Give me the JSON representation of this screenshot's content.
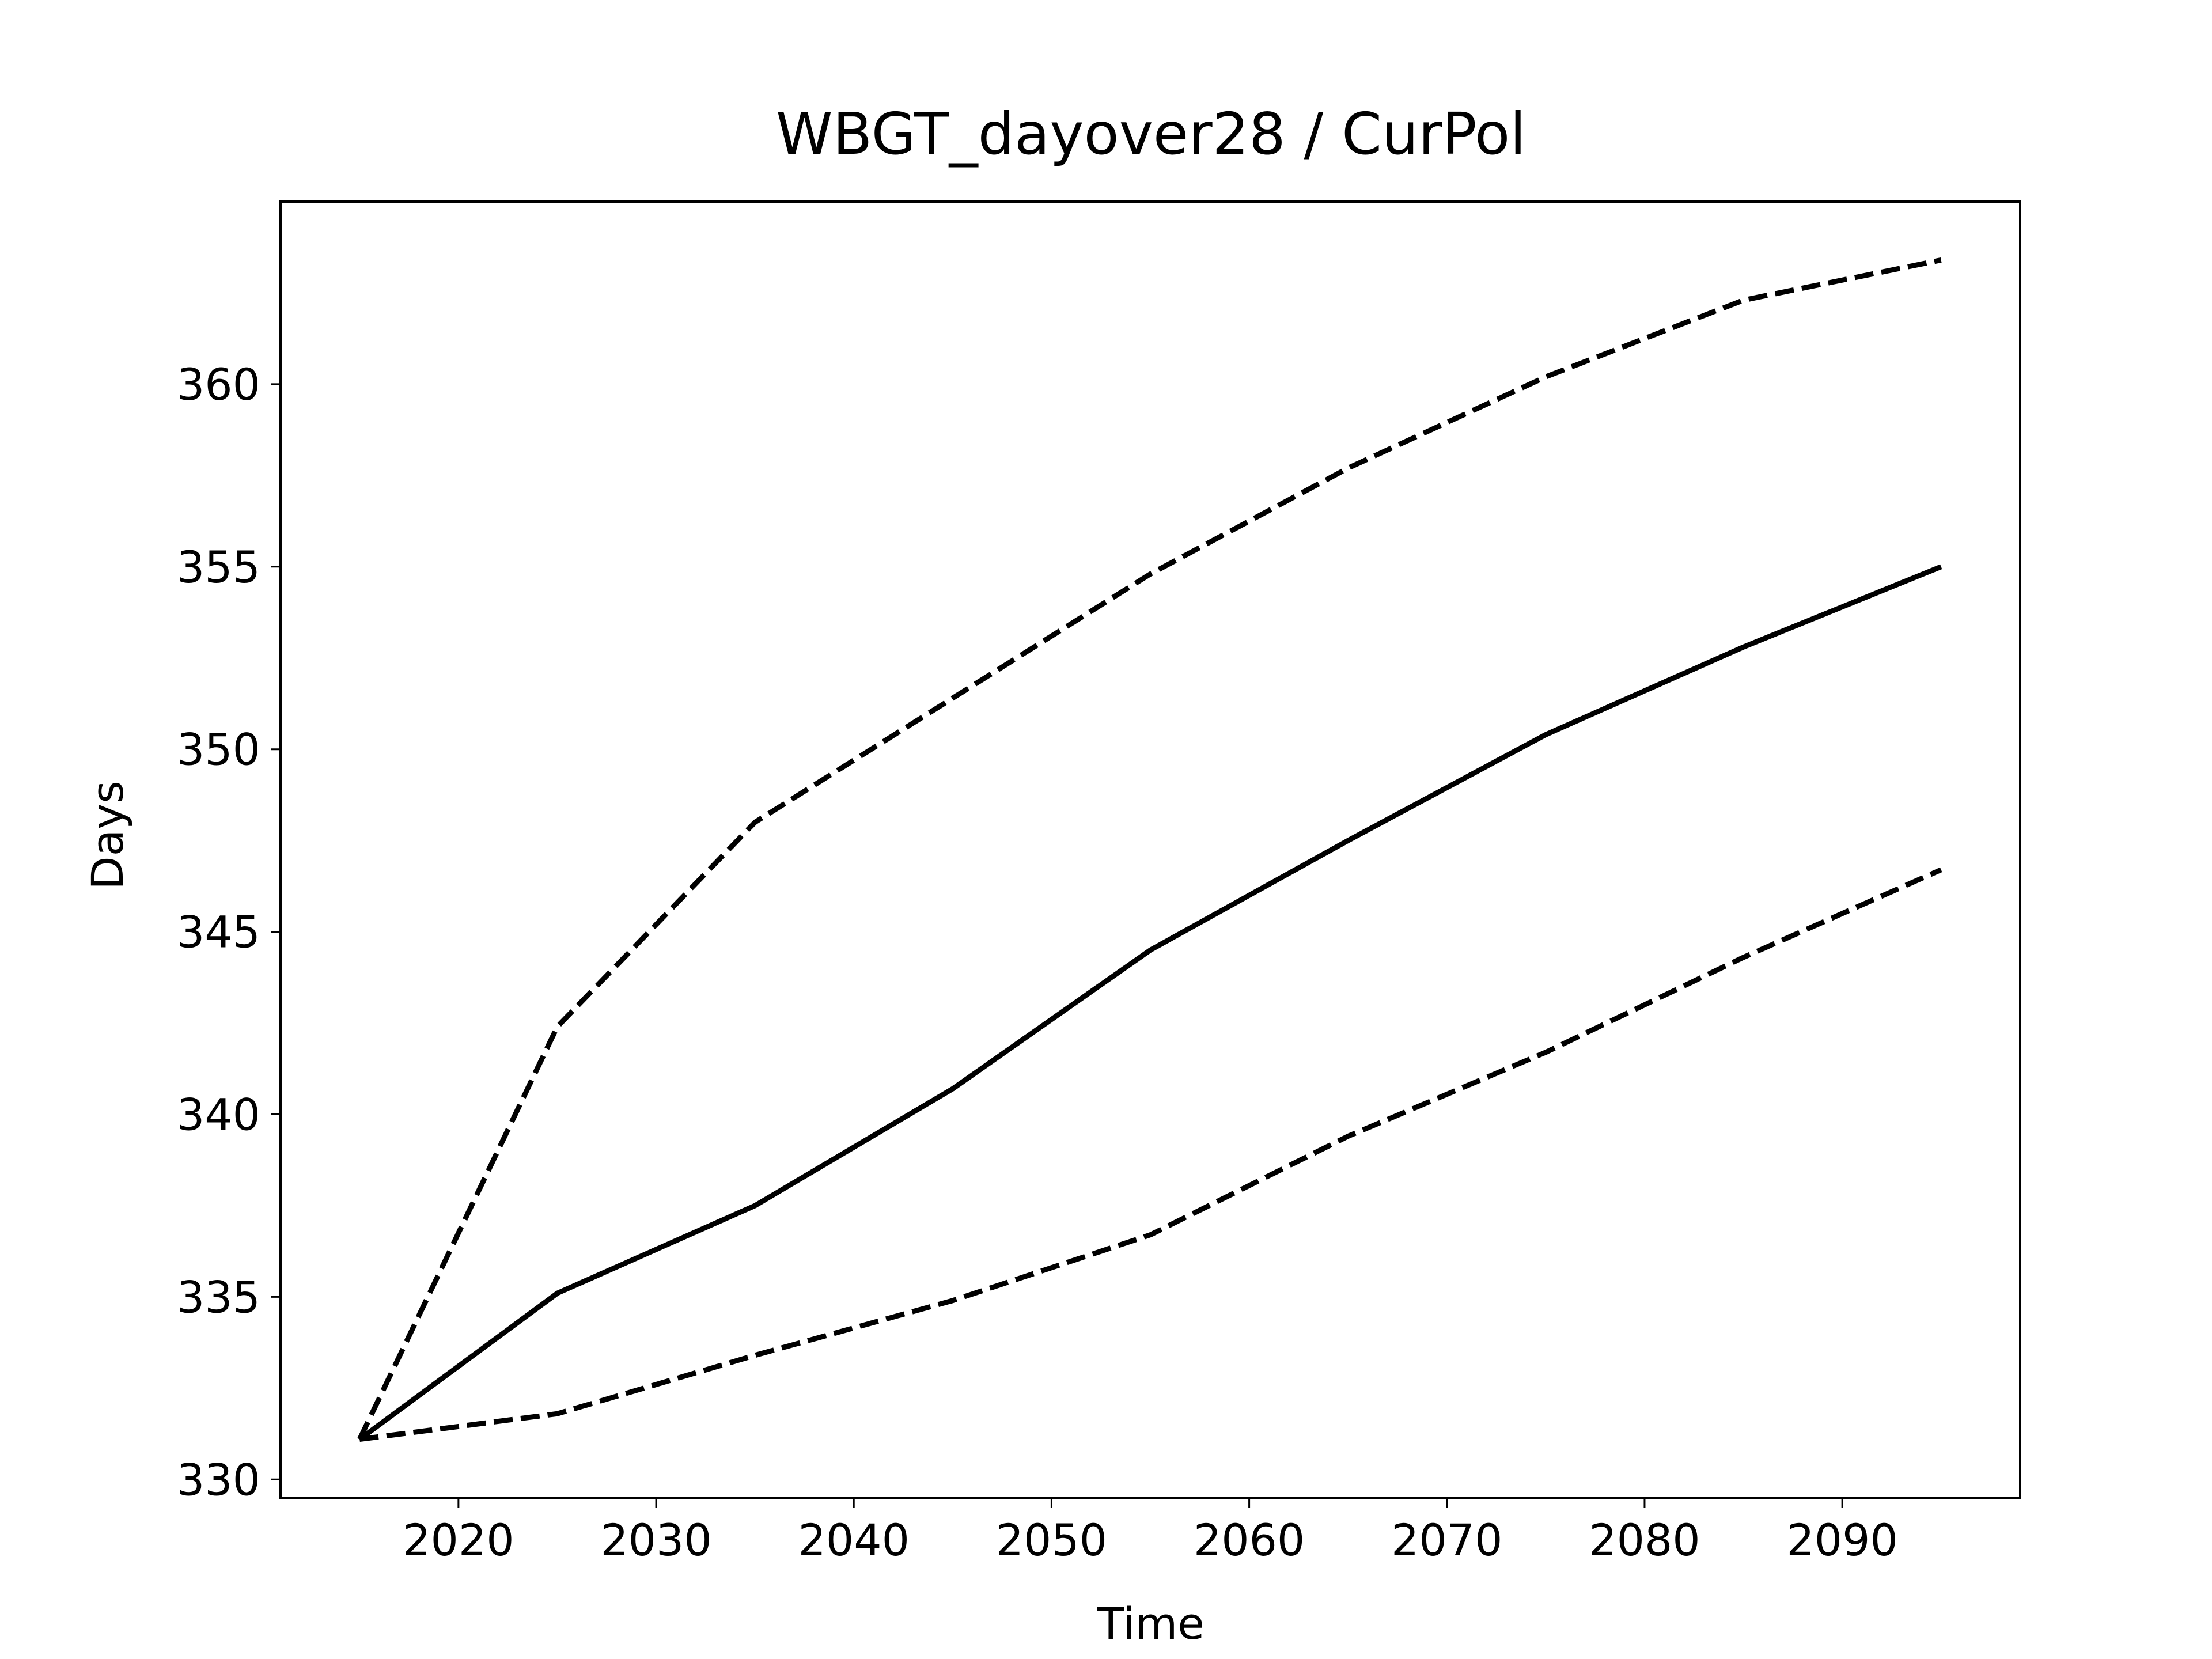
{
  "chart_data": {
    "type": "line",
    "title": "WBGT_dayover28 / CurPol",
    "xlabel": "Time",
    "ylabel": "Days",
    "x": [
      2015,
      2025,
      2035,
      2045,
      2055,
      2065,
      2075,
      2085,
      2095
    ],
    "series": [
      {
        "color": "#000000",
        "linestyle": "solid",
        "values": [
          331.1,
          335.1,
          337.5,
          340.7,
          344.5,
          347.5,
          350.4,
          352.8,
          355.0
        ]
      },
      {
        "color": "#000000",
        "linestyle": "dashed",
        "values": [
          331.1,
          342.4,
          348.0,
          351.4,
          354.8,
          357.7,
          360.2,
          362.3,
          363.4
        ]
      },
      {
        "color": "#000000",
        "linestyle": "dashed",
        "values": [
          331.1,
          331.8,
          333.4,
          334.9,
          336.7,
          339.4,
          341.7,
          344.3,
          346.7
        ]
      }
    ],
    "xlim": [
      2011,
      2099
    ],
    "xticks": [
      2020,
      2030,
      2040,
      2050,
      2060,
      2070,
      2080,
      2090
    ],
    "ylim": [
      329.5,
      365
    ],
    "yticks": [
      330,
      335,
      340,
      345,
      350,
      355,
      360
    ]
  }
}
